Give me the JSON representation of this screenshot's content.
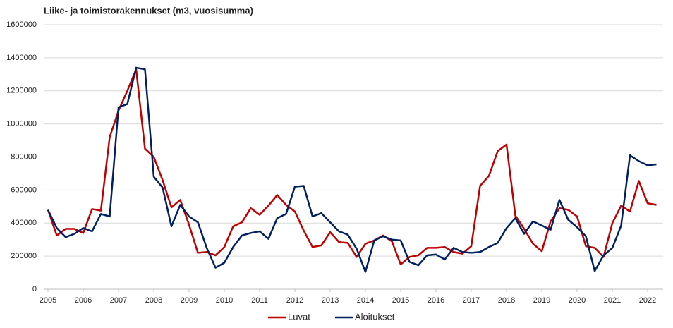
{
  "chart_data": {
    "type": "line",
    "title": "Liike- ja toimistorakennukset (m3, vuosisumma)",
    "x": [
      2005,
      2005.25,
      2005.5,
      2005.75,
      2006,
      2006.25,
      2006.5,
      2006.75,
      2007,
      2007.25,
      2007.5,
      2007.75,
      2008,
      2008.25,
      2008.5,
      2008.75,
      2009,
      2009.25,
      2009.5,
      2009.75,
      2010,
      2010.25,
      2010.5,
      2010.75,
      2011,
      2011.25,
      2011.5,
      2011.75,
      2012,
      2012.25,
      2012.5,
      2012.75,
      2013,
      2013.25,
      2013.5,
      2013.75,
      2014,
      2014.25,
      2014.5,
      2014.75,
      2015,
      2015.25,
      2015.5,
      2015.75,
      2016,
      2016.25,
      2016.5,
      2016.75,
      2017,
      2017.25,
      2017.5,
      2017.75,
      2018,
      2018.25,
      2018.5,
      2018.75,
      2019,
      2019.25,
      2019.5,
      2019.75,
      2020,
      2020.25,
      2020.5,
      2020.75,
      2021,
      2021.25,
      2021.5,
      2021.75,
      2022,
      2022.25
    ],
    "series": [
      {
        "name": "Luvat",
        "color": "#c00000",
        "values": [
          480000,
          325000,
          365000,
          365000,
          340000,
          485000,
          475000,
          920000,
          1080000,
          1200000,
          1330000,
          850000,
          800000,
          660000,
          495000,
          540000,
          390000,
          220000,
          225000,
          205000,
          255000,
          380000,
          405000,
          490000,
          450000,
          505000,
          570000,
          510000,
          470000,
          355000,
          255000,
          265000,
          345000,
          285000,
          280000,
          195000,
          275000,
          295000,
          325000,
          290000,
          150000,
          195000,
          205000,
          250000,
          250000,
          255000,
          225000,
          215000,
          260000,
          625000,
          685000,
          835000,
          875000,
          445000,
          365000,
          275000,
          230000,
          410000,
          490000,
          480000,
          440000,
          260000,
          250000,
          195000,
          400000,
          505000,
          470000,
          655000,
          520000,
          510000
        ]
      },
      {
        "name": "Aloitukset",
        "color": "#002060",
        "values": [
          480000,
          370000,
          315000,
          335000,
          370000,
          350000,
          455000,
          440000,
          1100000,
          1120000,
          1340000,
          1330000,
          680000,
          615000,
          380000,
          510000,
          440000,
          405000,
          250000,
          130000,
          160000,
          255000,
          325000,
          340000,
          350000,
          305000,
          430000,
          455000,
          620000,
          625000,
          440000,
          460000,
          405000,
          350000,
          330000,
          245000,
          105000,
          295000,
          320000,
          300000,
          295000,
          165000,
          145000,
          205000,
          210000,
          180000,
          250000,
          225000,
          220000,
          225000,
          255000,
          280000,
          370000,
          430000,
          335000,
          410000,
          385000,
          360000,
          540000,
          420000,
          375000,
          320000,
          110000,
          205000,
          250000,
          385000,
          810000,
          775000,
          750000,
          755000
        ]
      }
    ],
    "xlim": [
      2004.88,
      2022.44
    ],
    "xticks": [
      2005,
      2006,
      2007,
      2008,
      2009,
      2010,
      2011,
      2012,
      2013,
      2014,
      2015,
      2016,
      2017,
      2018,
      2019,
      2020,
      2021,
      2022
    ],
    "ylim": [
      0,
      1600000
    ],
    "yticks": [
      0,
      200000,
      400000,
      600000,
      800000,
      1000000,
      1200000,
      1400000,
      1600000
    ],
    "grid": true,
    "legend": "bottom"
  }
}
